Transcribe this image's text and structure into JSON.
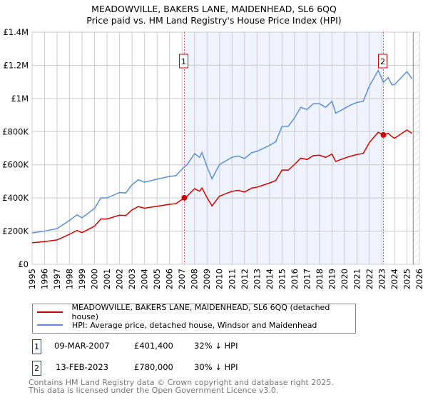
{
  "title": "MEADOWVILLE, BAKERS LANE, MAIDENHEAD, SL6 6QQ",
  "subtitle": "Price paid vs. HM Land Registry's House Price Index (HPI)",
  "chart_data": {
    "type": "line",
    "title": "MEADOWVILLE, BAKERS LANE, MAIDENHEAD, SL6 6QQ",
    "subtitle": "Price paid vs. HM Land Registry's House Price Index (HPI)",
    "xlim": [
      1995,
      2026
    ],
    "ylim": [
      0,
      1400000
    ],
    "y_ticks": [
      0,
      200000,
      400000,
      600000,
      800000,
      1000000,
      1200000,
      1400000
    ],
    "y_tick_labels": [
      "£0",
      "£200K",
      "£400K",
      "£600K",
      "£800K",
      "£1M",
      "£1.2M",
      "£1.4M"
    ],
    "x_ticks": [
      "1995",
      "1996",
      "1997",
      "1998",
      "1999",
      "2000",
      "2001",
      "2002",
      "2003",
      "2004",
      "2005",
      "2006",
      "2007",
      "2008",
      "2009",
      "2010",
      "2011",
      "2012",
      "2013",
      "2014",
      "2015",
      "2016",
      "2017",
      "2018",
      "2019",
      "2020",
      "2021",
      "2022",
      "2023",
      "2024",
      "2025",
      "2026"
    ],
    "grid": true,
    "x": [
      1995,
      1996,
      1997,
      1998,
      1998.6,
      1999,
      2000,
      2000.5,
      2001,
      2002,
      2002.5,
      2003,
      2003.5,
      2004,
      2005,
      2006,
      2006.5,
      2007.19,
      2007.4,
      2008,
      2008.4,
      2008.6,
      2009,
      2009.4,
      2010,
      2011,
      2011.5,
      2012,
      2012.6,
      2013,
      2014,
      2014.5,
      2015,
      2015.5,
      2016,
      2016.5,
      2017,
      2017.5,
      2018,
      2018.5,
      2019,
      2019.3,
      2020,
      2020.5,
      2021,
      2021.5,
      2022,
      2022.7,
      2023.12,
      2023.5,
      2023.8,
      2024,
      2025,
      2025.4
    ],
    "series": [
      {
        "name": "MEADOWVILLE, BAKERS LANE, MAIDENHEAD, SL6 6QQ (detached house)",
        "color": "#cc0000",
        "values": [
          130000,
          137000,
          147000,
          181000,
          204000,
          191000,
          230000,
          273000,
          273000,
          296000,
          294000,
          328000,
          348000,
          338000,
          350000,
          362000,
          365000,
          401400,
          410000,
          456000,
          441000,
          460000,
          402000,
          352000,
          411000,
          440000,
          446000,
          436000,
          460000,
          465000,
          490000,
          505000,
          568000,
          568000,
          602000,
          640000,
          632000,
          655000,
          658000,
          645000,
          665000,
          620000,
          640000,
          652000,
          662000,
          668000,
          735000,
          796000,
          780000,
          790000,
          770000,
          760000,
          810000,
          790000
        ]
      },
      {
        "name": "HPI: Average price, detached house, Windsor and Maidenhead",
        "color": "#5b8fd4",
        "values": [
          189000,
          200000,
          215000,
          265000,
          298000,
          280000,
          337000,
          400000,
          400000,
          433000,
          430000,
          480000,
          510000,
          495000,
          513000,
          530000,
          534000,
          588000,
          600000,
          667000,
          645000,
          674000,
          588000,
          516000,
          602000,
          645000,
          653000,
          638000,
          674000,
          681000,
          717000,
          739000,
          832000,
          832000,
          882000,
          947000,
          933000,
          968000,
          968000,
          947000,
          983000,
          911000,
          940000,
          961000,
          976000,
          983000,
          1076000,
          1169000,
          1098000,
          1126000,
          1083000,
          1083000,
          1162000,
          1119000
        ]
      }
    ],
    "annotations": [
      {
        "label": "1",
        "x": 2007.19,
        "value": 401400
      },
      {
        "label": "2",
        "x": 2023.12,
        "value": 780000
      }
    ],
    "legend_placement": "below"
  },
  "transactions": [
    {
      "num": "1",
      "date": "09-MAR-2007",
      "price": "£401,400",
      "hpi": "32% ↓ HPI"
    },
    {
      "num": "2",
      "date": "13-FEB-2023",
      "price": "£780,000",
      "hpi": "30% ↓ HPI"
    }
  ],
  "footer": [
    "Contains HM Land Registry data © Crown copyright and database right 2025.",
    "This data is licensed under the Open Government Licence v3.0."
  ]
}
